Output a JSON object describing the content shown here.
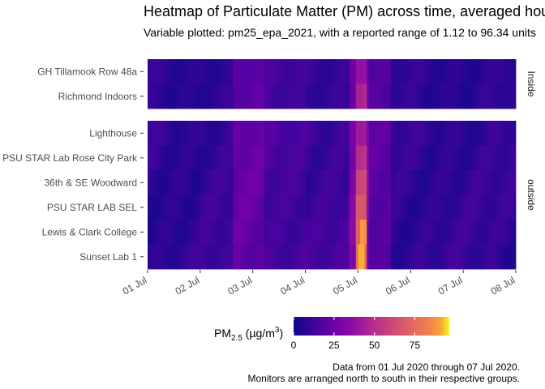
{
  "chart_data": {
    "type": "heatmap",
    "title": "Heatmap of Particulate Matter (PM) across time, averaged hou",
    "subtitle": "Variable plotted: pm25_epa_2021, with a reported range of 1.12 to 96.34 units",
    "x_start": "2020-07-01",
    "x_end": "2020-07-08",
    "x_ticks": [
      "01 Jul",
      "02 Jul",
      "03 Jul",
      "04 Jul",
      "05 Jul",
      "06 Jul",
      "07 Jul",
      "08 Jul"
    ],
    "value_range": [
      1.12,
      96.34
    ],
    "colorscale": "plasma",
    "facets": [
      {
        "label": "Inside",
        "rows": [
          "GH Tillamook Row 48a",
          "Richmond Indoors"
        ]
      },
      {
        "label": "outside",
        "rows": [
          "Lighthouse",
          "PSU STAR Lab Rose City Park",
          "36th & SE Woodward",
          "PSU STAR LAB SEL",
          "Lewis & Clark College",
          "Sunset Lab 1"
        ]
      }
    ],
    "legend": {
      "title_main": "PM",
      "title_sub": "2.5",
      "title_unit": " (µg/m",
      "title_sup": "3",
      "title_close": ")",
      "ticks": [
        0,
        25,
        50,
        75
      ],
      "range": [
        0,
        96.34
      ],
      "position": "bottom"
    },
    "caption": [
      "Data from 01 Jul 2020 through 07 Jul 2020.",
      "Monitors are arranged north to south in their respective groups."
    ],
    "approx_hourly_pattern": [
      {
        "day_range": [
          0.0,
          1.0
        ],
        "level": 8
      },
      {
        "day_range": [
          1.0,
          1.6
        ],
        "level": 10
      },
      {
        "day_range": [
          1.6,
          2.2
        ],
        "level": 22
      },
      {
        "day_range": [
          2.2,
          3.0
        ],
        "level": 14
      },
      {
        "day_range": [
          3.0,
          3.8
        ],
        "level": 12
      },
      {
        "day_range": [
          3.8,
          4.2
        ],
        "level": 30
      },
      {
        "day_range": [
          4.2,
          4.6
        ],
        "level": 18
      },
      {
        "day_range": [
          4.6,
          7.0
        ],
        "level": 9
      }
    ]
  }
}
